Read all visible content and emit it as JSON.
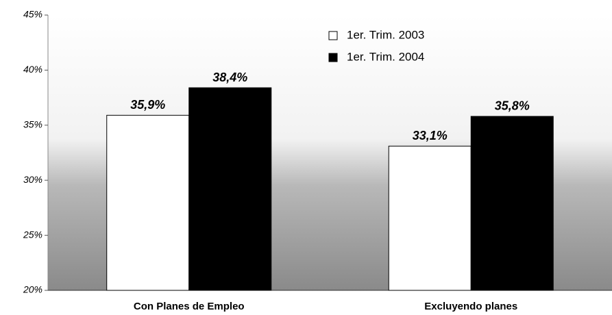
{
  "chart_data": {
    "type": "bar",
    "categories": [
      "Con Planes de Empleo",
      "Excluyendo planes"
    ],
    "series": [
      {
        "name": "1er. Trim. 2003",
        "color": "#ffffff",
        "values": [
          35.9,
          33.1
        ],
        "value_labels": [
          "35,9%",
          "33,1%"
        ]
      },
      {
        "name": "1er. Trim. 2004",
        "color": "#000000",
        "values": [
          38.4,
          35.8
        ],
        "value_labels": [
          "38,4%",
          "35,8%"
        ]
      }
    ],
    "ylim": [
      20,
      45
    ],
    "yticks": [
      {
        "value": 20,
        "label": "20%"
      },
      {
        "value": 25,
        "label": "25%"
      },
      {
        "value": 30,
        "label": "30%"
      },
      {
        "value": 35,
        "label": "35%"
      },
      {
        "value": 40,
        "label": "40%"
      },
      {
        "value": 45,
        "label": "45%"
      }
    ],
    "legend": "top"
  }
}
